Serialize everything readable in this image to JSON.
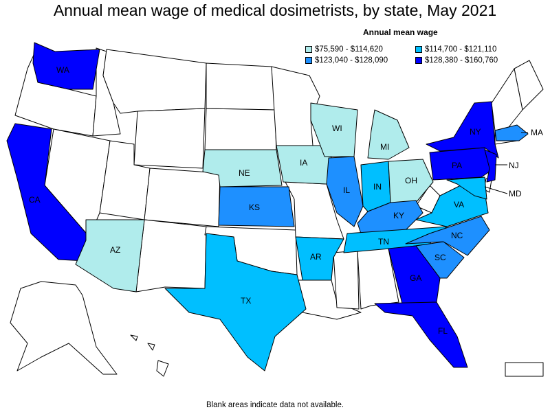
{
  "title": "Annual mean wage of medical dosimetrists, by state, May 2021",
  "legend": {
    "title": "Annual mean wage",
    "items": [
      {
        "label": "$75,590 - $114,620",
        "color": "#b0ecec"
      },
      {
        "label": "$114,700 - $121,110",
        "color": "#00bfff"
      },
      {
        "label": "$123,040 - $128,090",
        "color": "#1e90ff"
      },
      {
        "label": "$128,380 - $160,760",
        "color": "#0000ff"
      }
    ]
  },
  "footer": "Blank areas indicate data not available.",
  "states": {
    "WA": {
      "label": "WA",
      "tier": 3
    },
    "CA": {
      "label": "CA",
      "tier": 3
    },
    "AZ": {
      "label": "AZ",
      "tier": 0
    },
    "NE": {
      "label": "NE",
      "tier": 0
    },
    "KS": {
      "label": "KS",
      "tier": 2
    },
    "TX": {
      "label": "TX",
      "tier": 1
    },
    "IA": {
      "label": "IA",
      "tier": 0
    },
    "AR": {
      "label": "AR",
      "tier": 1
    },
    "WI": {
      "label": "WI",
      "tier": 0
    },
    "IL": {
      "label": "IL",
      "tier": 2
    },
    "MI": {
      "label": "MI",
      "tier": 0
    },
    "IN": {
      "label": "IN",
      "tier": 1
    },
    "OH": {
      "label": "OH",
      "tier": 0
    },
    "KY": {
      "label": "KY",
      "tier": 2
    },
    "TN": {
      "label": "TN",
      "tier": 1
    },
    "GA": {
      "label": "GA",
      "tier": 3
    },
    "FL": {
      "label": "FL",
      "tier": 3
    },
    "SC": {
      "label": "SC",
      "tier": 2
    },
    "NC": {
      "label": "NC",
      "tier": 2
    },
    "VA": {
      "label": "VA",
      "tier": 1
    },
    "MD": {
      "label": "MD",
      "tier": 1
    },
    "PA": {
      "label": "PA",
      "tier": 3
    },
    "NY": {
      "label": "NY",
      "tier": 3
    },
    "NJ": {
      "label": "NJ",
      "tier": 3
    },
    "MA": {
      "label": "MA",
      "tier": 2
    }
  }
}
